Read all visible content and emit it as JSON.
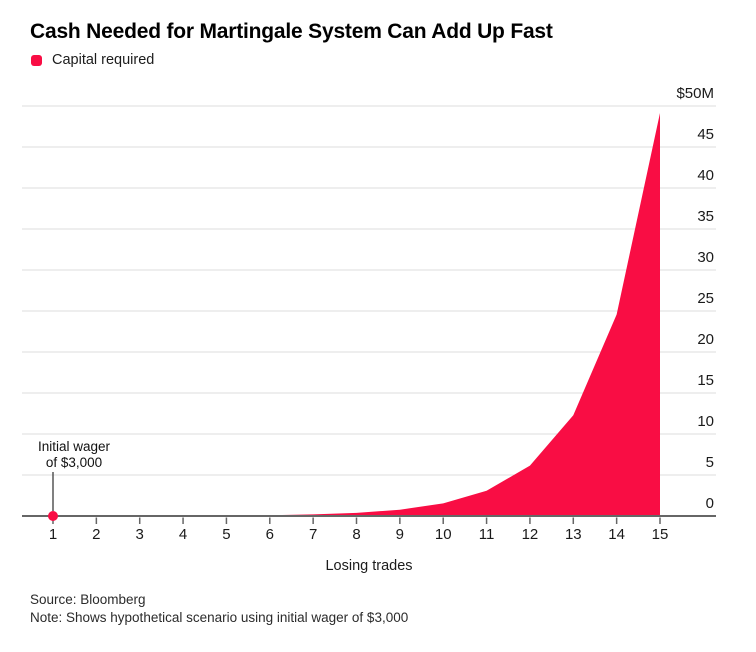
{
  "header": {
    "title": "Cash Needed for Martingale System Can Add Up Fast",
    "legend": {
      "label": "Capital required"
    }
  },
  "annotation": {
    "line1": "Initial wager",
    "line2": "of $3,000"
  },
  "footer": {
    "source": "Source: Bloomberg",
    "note": "Note: Shows hypothetical scenario using initial wager of $3,000"
  },
  "colors": {
    "accent": "#f90d44",
    "grid": "#dcdcdc",
    "axis": "#666666",
    "tick_text": "#1a1a1a",
    "annotation_line": "#555555"
  },
  "chart_data": {
    "type": "area",
    "title": "Cash Needed for Martingale System Can Add Up Fast",
    "series": [
      {
        "name": "Capital required",
        "values_millions_usd": [
          0.003,
          0.006,
          0.012,
          0.024,
          0.048,
          0.096,
          0.192,
          0.384,
          0.768,
          1.536,
          3.072,
          6.144,
          12.288,
          24.576,
          49.152
        ]
      }
    ],
    "categories": [
      "1",
      "2",
      "3",
      "4",
      "5",
      "6",
      "7",
      "8",
      "9",
      "10",
      "11",
      "12",
      "13",
      "14",
      "15"
    ],
    "xlabel": "Losing trades",
    "ylabel": "",
    "y_tick_labels": [
      "$50M",
      "45",
      "40",
      "35",
      "30",
      "25",
      "20",
      "15",
      "10",
      "5",
      "0"
    ],
    "y_tick_values": [
      50,
      45,
      40,
      35,
      30,
      25,
      20,
      15,
      10,
      5,
      0
    ],
    "ylim": [
      0,
      50
    ],
    "grid": "horizontal",
    "legend_position": "top-left",
    "annotation": {
      "text": "Initial wager of $3,000",
      "x": 1,
      "y_millions_usd": 0.003,
      "marker": "dot"
    }
  }
}
